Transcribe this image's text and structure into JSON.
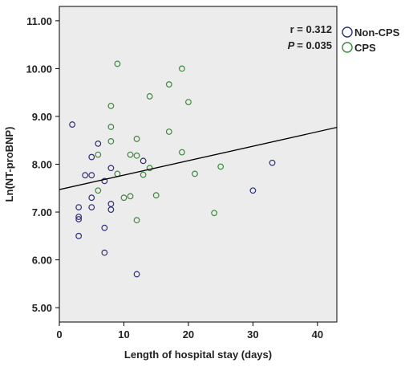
{
  "chart_data": {
    "type": "scatter",
    "title": "",
    "xlabel": "Length of hospital stay (days)",
    "ylabel": "Ln(NT-proBNP)",
    "xlim": [
      0,
      43
    ],
    "ylim": [
      4.7,
      11.3
    ],
    "x_ticks": [
      0,
      10,
      20,
      30,
      40
    ],
    "y_ticks": [
      "5.00",
      "6.00",
      "7.00",
      "8.00",
      "9.00",
      "10.00",
      "11.00"
    ],
    "grid": false,
    "legend_position": "right-outside-top",
    "plot_background": "#ececec",
    "annotations": {
      "r_label": "r = 0.312",
      "p_symbol": "P",
      "p_value_text": "= 0.035"
    },
    "fit_line": {
      "x": [
        0,
        43
      ],
      "y": [
        7.47,
        8.77
      ],
      "color": "#000000"
    },
    "series": [
      {
        "name": "Non-CPS",
        "color": "#2e2e7a",
        "points": [
          {
            "x": 2,
            "y": 8.83
          },
          {
            "x": 3,
            "y": 7.1
          },
          {
            "x": 3,
            "y": 6.9
          },
          {
            "x": 3,
            "y": 6.85
          },
          {
            "x": 3,
            "y": 6.5
          },
          {
            "x": 4,
            "y": 7.77
          },
          {
            "x": 5,
            "y": 7.77
          },
          {
            "x": 5,
            "y": 8.15
          },
          {
            "x": 5,
            "y": 7.3
          },
          {
            "x": 5,
            "y": 7.1
          },
          {
            "x": 6,
            "y": 8.43
          },
          {
            "x": 7,
            "y": 7.65
          },
          {
            "x": 7,
            "y": 6.67
          },
          {
            "x": 7,
            "y": 6.15
          },
          {
            "x": 8,
            "y": 7.92
          },
          {
            "x": 8,
            "y": 7.17
          },
          {
            "x": 8,
            "y": 7.05
          },
          {
            "x": 12,
            "y": 5.7
          },
          {
            "x": 13,
            "y": 8.07
          },
          {
            "x": 30,
            "y": 7.45
          },
          {
            "x": 33,
            "y": 8.03
          }
        ]
      },
      {
        "name": "CPS",
        "color": "#3a8a3a",
        "points": [
          {
            "x": 6,
            "y": 8.2
          },
          {
            "x": 6,
            "y": 7.45
          },
          {
            "x": 8,
            "y": 9.22
          },
          {
            "x": 8,
            "y": 8.78
          },
          {
            "x": 8,
            "y": 8.48
          },
          {
            "x": 9,
            "y": 10.1
          },
          {
            "x": 9,
            "y": 7.8
          },
          {
            "x": 10,
            "y": 7.3
          },
          {
            "x": 11,
            "y": 8.2
          },
          {
            "x": 11,
            "y": 7.33
          },
          {
            "x": 12,
            "y": 8.53
          },
          {
            "x": 12,
            "y": 8.18
          },
          {
            "x": 12,
            "y": 6.83
          },
          {
            "x": 13,
            "y": 7.78
          },
          {
            "x": 14,
            "y": 9.42
          },
          {
            "x": 14,
            "y": 7.92
          },
          {
            "x": 15,
            "y": 7.35
          },
          {
            "x": 17,
            "y": 9.67
          },
          {
            "x": 17,
            "y": 8.68
          },
          {
            "x": 19,
            "y": 10.0
          },
          {
            "x": 19,
            "y": 8.25
          },
          {
            "x": 20,
            "y": 9.3
          },
          {
            "x": 21,
            "y": 7.8
          },
          {
            "x": 24,
            "y": 6.98
          },
          {
            "x": 25,
            "y": 7.95
          }
        ]
      }
    ]
  }
}
